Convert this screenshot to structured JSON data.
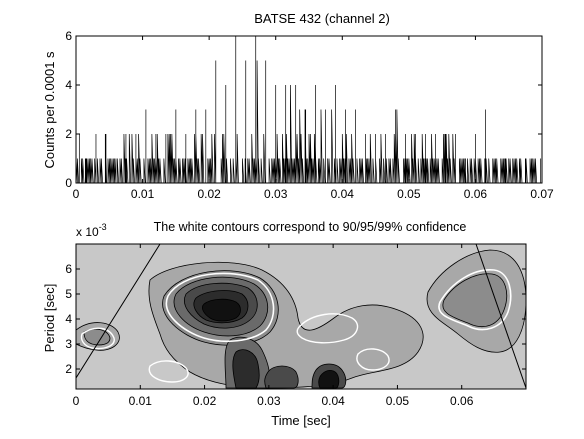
{
  "chart_data": [
    {
      "type": "line",
      "title": "BATSE 432 (channel 2)",
      "xlabel": "",
      "ylabel": "Counts per 0.0001 s",
      "xlim": [
        0,
        0.07
      ],
      "ylim": [
        0,
        6
      ],
      "x_ticks": [
        "0",
        "0.01",
        "0.02",
        "0.03",
        "0.04",
        "0.05",
        "0.06",
        "0.07"
      ],
      "y_ticks": [
        "0",
        "2",
        "4",
        "6"
      ],
      "grid": false,
      "bin_width": 0.0001,
      "series": [
        {
          "x": [
            0.0005,
            0.0015,
            0.003,
            0.0045,
            0.006,
            0.0075,
            0.009,
            0.0105,
            0.012,
            0.0135,
            0.015,
            0.0165,
            0.018,
            0.0195,
            0.021,
            0.0225,
            0.024,
            0.0255,
            0.027,
            0.0285,
            0.03,
            0.0315,
            0.033,
            0.0345,
            0.036,
            0.0375,
            0.039,
            0.0405,
            0.042,
            0.0435,
            0.045,
            0.0465,
            0.048,
            0.0495,
            0.051,
            0.0525,
            0.054,
            0.0555,
            0.057,
            0.0585,
            0.06,
            0.0615,
            0.063,
            0.0645,
            0.066,
            0.0675,
            0.069
          ],
          "peak": [
            2,
            1,
            2,
            2,
            1,
            2,
            2,
            3,
            2,
            2,
            3,
            2,
            3,
            3,
            5,
            4,
            6,
            5,
            6,
            5,
            4,
            4,
            4,
            3,
            4,
            3,
            4,
            3,
            3,
            2,
            2,
            2,
            3,
            2,
            2,
            2,
            2,
            2,
            2,
            1,
            2,
            3,
            1,
            1,
            1,
            1,
            1
          ]
        }
      ]
    },
    {
      "type": "heatmap",
      "title": "The white contours correspond to 90/95/99% confidence",
      "xlabel": "Time  [sec]",
      "ylabel": "Period  [sec]",
      "y_multiplier": "x 10",
      "y_multiplier_exp": "-3",
      "xlim": [
        0,
        0.07
      ],
      "ylim": [
        1.2,
        7
      ],
      "x_ticks": [
        "0",
        "0.01",
        "0.02",
        "0.03",
        "0.04",
        "0.05",
        "0.06"
      ],
      "y_ticks": [
        "2",
        "3",
        "4",
        "5",
        "6"
      ],
      "grid": false,
      "colormap": "grayscale (dark = high power)",
      "regions": [
        {
          "x": 0.023,
          "y": 4.3,
          "level": 6,
          "extent": [
            0.014,
            0.012
          ]
        },
        {
          "x": 0.027,
          "y": 1.7,
          "level": 5,
          "extent": [
            0.008,
            0.004
          ]
        },
        {
          "x": 0.0375,
          "y": 1.5,
          "level": 5,
          "extent": [
            0.004,
            0.003
          ]
        },
        {
          "x": 0.059,
          "y": 4.7,
          "level": 3,
          "extent": [
            0.012,
            0.022
          ]
        },
        {
          "x": 0.004,
          "y": 3.2,
          "level": 3,
          "extent": [
            0.01,
            0.012
          ]
        },
        {
          "x": 0.045,
          "y": 3.0,
          "level": 2,
          "extent": [
            0.02,
            0.012
          ]
        }
      ],
      "cone_of_influence": true
    }
  ],
  "colors": {
    "background": "#ffffff",
    "axis": "#000000",
    "level0": "#c8c8c8",
    "level1": "#a8a8a8",
    "level2": "#8c8c8c",
    "level3": "#6a6a6a",
    "level4": "#4a4a4a",
    "level5": "#2c2c2c",
    "level6": "#111111",
    "confidence_contour": "#ffffff"
  }
}
